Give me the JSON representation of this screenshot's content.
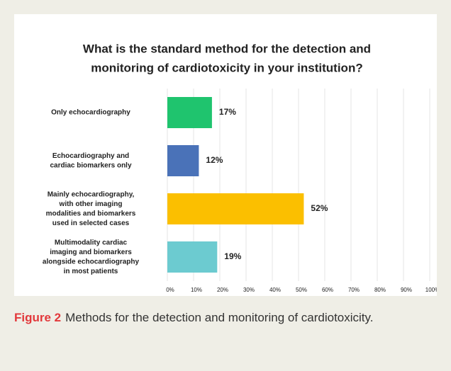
{
  "chart_data": {
    "type": "bar",
    "orientation": "horizontal",
    "title": [
      "What is the standard method for the detection and",
      "monitoring of cardiotoxicity in your institution?"
    ],
    "categories": [
      [
        "Only echocardiography"
      ],
      [
        "Echocardiography and",
        "cardiac biomarkers only"
      ],
      [
        "Mainly echocardiography,",
        "with other imaging",
        "modalities and biomarkers",
        "used in selected cases"
      ],
      [
        "Multimodality cardiac",
        "imaging and biomarkers",
        "alongside echocardiography",
        "in most patients"
      ]
    ],
    "values": [
      17,
      12,
      52,
      19
    ],
    "value_labels": [
      "17%",
      "12%",
      "52%",
      "19%"
    ],
    "colors": [
      "#1fc46e",
      "#4a72b8",
      "#fbbf00",
      "#6ccbd0"
    ],
    "xlim": [
      0,
      100
    ],
    "xticks": [
      {
        "value": 0,
        "label": "0%"
      },
      {
        "value": 10,
        "label": "10%"
      },
      {
        "value": 20,
        "label": "20%"
      },
      {
        "value": 30,
        "label": "30%"
      },
      {
        "value": 40,
        "label": "40%"
      },
      {
        "value": 50,
        "label": "50%"
      },
      {
        "value": 60,
        "label": "60%"
      },
      {
        "value": 70,
        "label": "70%"
      },
      {
        "value": 80,
        "label": "80%"
      },
      {
        "value": 90,
        "label": "90%"
      },
      {
        "value": 100,
        "label": "100%"
      }
    ],
    "grid": true
  },
  "caption": {
    "label": "Figure 2",
    "text": "Methods for the detection and monitoring of cardiotoxicity."
  }
}
